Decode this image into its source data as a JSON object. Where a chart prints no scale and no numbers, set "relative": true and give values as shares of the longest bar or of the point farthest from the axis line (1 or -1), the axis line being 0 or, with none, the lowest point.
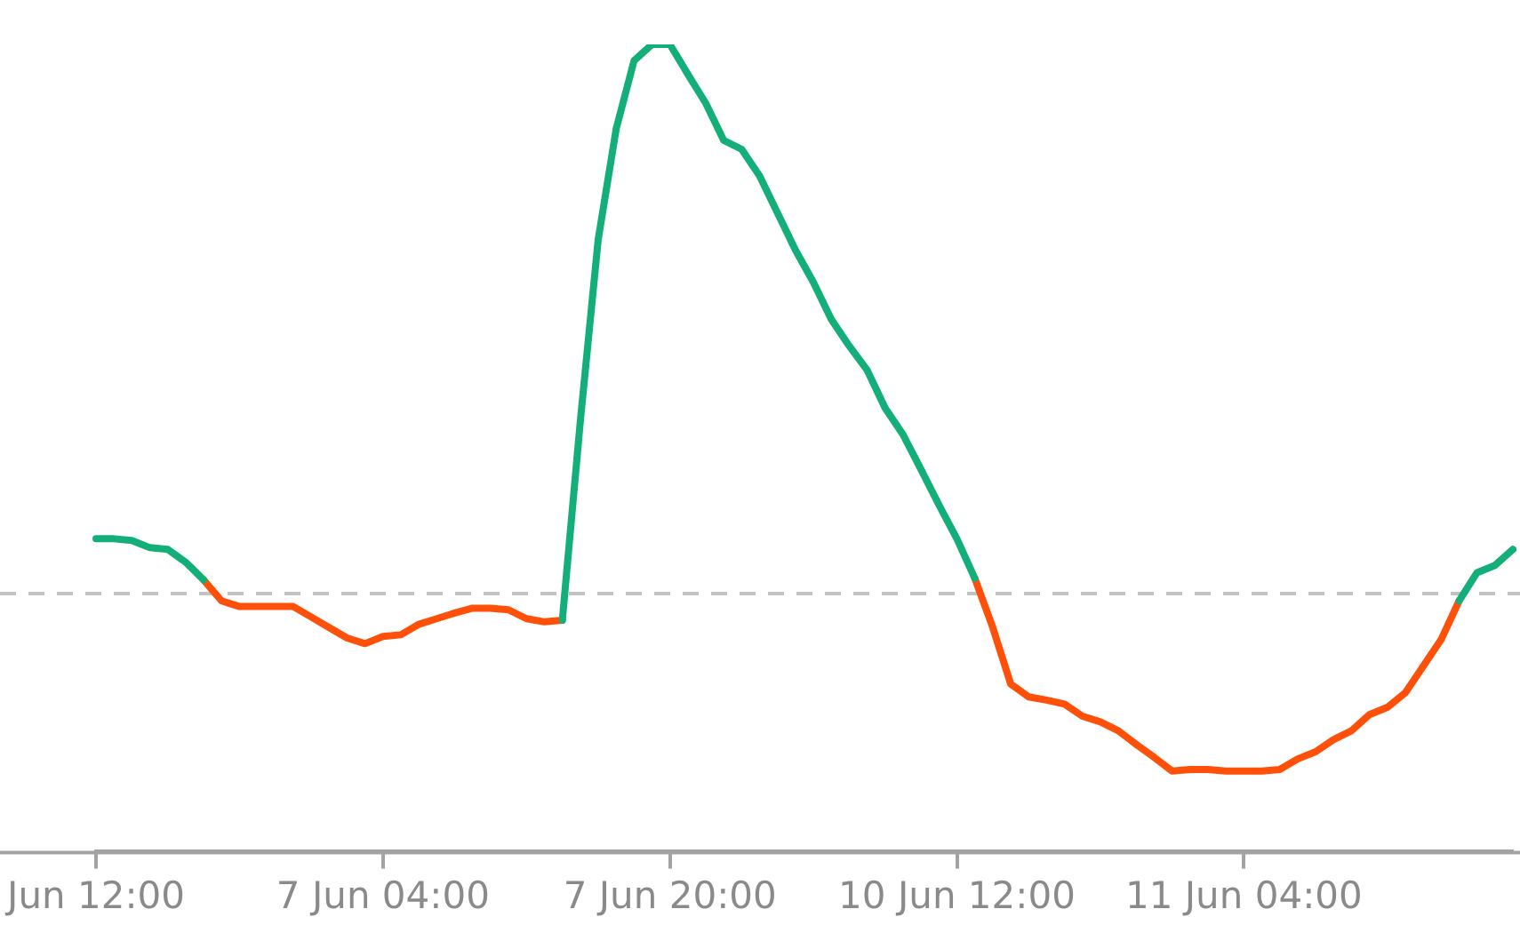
{
  "chart_data": {
    "type": "line",
    "relative": true,
    "legend": false,
    "grid": false,
    "tick_labels": "x",
    "marker": "none",
    "categories": [
      "Jun 12:00",
      null,
      null,
      null,
      null,
      null,
      null,
      null,
      null,
      null,
      null,
      null,
      null,
      null,
      null,
      null,
      "7 Jun 04:00",
      null,
      null,
      null,
      null,
      null,
      null,
      null,
      null,
      null,
      null,
      null,
      null,
      null,
      null,
      null,
      "7 Jun 20:00",
      null,
      null,
      null,
      null,
      null,
      null,
      null,
      null,
      null,
      null,
      null,
      null,
      null,
      null,
      null,
      "10 Jun 12:00",
      null,
      null,
      null,
      null,
      null,
      null,
      null,
      null,
      null,
      null,
      null,
      null,
      null,
      null,
      null,
      "11 Jun 04:00",
      null,
      null,
      null,
      null,
      null,
      null,
      null,
      null,
      null,
      null,
      null,
      null,
      null,
      null,
      null
    ],
    "series": [
      {
        "color": "#14af78",
        "values": [
          0.387,
          0.387,
          0.385,
          0.376,
          0.374,
          0.358,
          0.336,
          null,
          null,
          null,
          null,
          null,
          null,
          null,
          null,
          null,
          null,
          null,
          null,
          null,
          null,
          null,
          null,
          null,
          null,
          null,
          0.286,
          0.532,
          0.758,
          0.895,
          0.98,
          1,
          1,
          0.963,
          0.927,
          0.881,
          0.87,
          0.837,
          0.791,
          0.745,
          0.705,
          0.659,
          0.626,
          0.596,
          0.549,
          0.516,
          0.473,
          0.429,
          0.387,
          0.338,
          null,
          null,
          null,
          null,
          null,
          null,
          null,
          null,
          null,
          null,
          null,
          null,
          null,
          null,
          null,
          null,
          null,
          null,
          null,
          null,
          null,
          null,
          null,
          null,
          null,
          null,
          0.31,
          0.345,
          0.354,
          0.374
        ]
      },
      {
        "color": "#ff500a",
        "values": [
          null,
          null,
          null,
          null,
          null,
          null,
          0.336,
          0.31,
          0.303,
          0.303,
          0.303,
          0.303,
          0.29,
          0.277,
          0.264,
          0.257,
          0.266,
          0.268,
          0.281,
          0.288,
          0.295,
          0.301,
          0.301,
          0.299,
          0.288,
          0.284,
          0.286,
          null,
          null,
          null,
          null,
          null,
          null,
          null,
          null,
          null,
          null,
          null,
          null,
          null,
          null,
          null,
          null,
          null,
          null,
          null,
          null,
          null,
          null,
          0.338,
          0.277,
          0.207,
          0.191,
          0.187,
          0.182,
          0.167,
          0.16,
          0.149,
          0.132,
          0.116,
          0.099,
          0.101,
          0.101,
          0.099,
          0.099,
          0.099,
          0.101,
          0.114,
          0.123,
          0.138,
          0.149,
          0.169,
          0.178,
          0.196,
          0.229,
          0.262,
          0.31,
          null,
          null,
          null
        ]
      }
    ],
    "ref_lines": [
      {
        "axis": "y",
        "value": 0.319,
        "color": "#c3c3c3",
        "line_style": "dashed"
      }
    ]
  }
}
